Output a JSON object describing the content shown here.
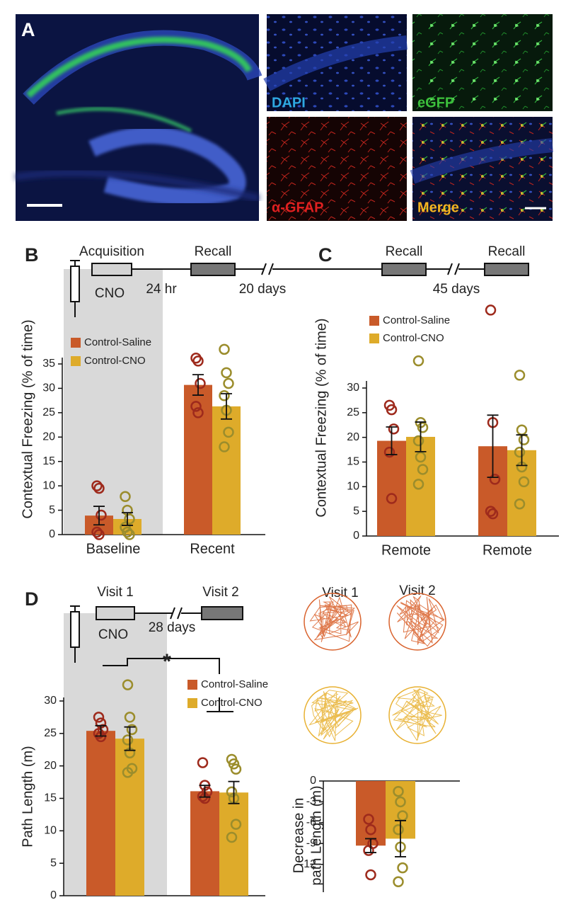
{
  "panel_a": {
    "label": "A",
    "images": [
      "DAPI",
      "eGFP",
      "α-GFAP",
      "Merge"
    ]
  },
  "chart_data": [
    {
      "type": "bar",
      "panel": "B",
      "annotations": [
        "Acquisition",
        "Recall",
        "CNO",
        "24 hr",
        "20 days"
      ],
      "ylabel": "Contextual Freezing (% of time)",
      "categories": [
        "Baseline",
        "Recent"
      ],
      "ylim": [
        0,
        35
      ],
      "yticks": [
        0,
        5,
        10,
        15,
        20,
        25,
        30,
        35
      ],
      "series": [
        {
          "name": "Control-Saline",
          "color": "#c95a29",
          "point_color": "#9e2a1c",
          "values": [
            3.9,
            30.7
          ],
          "errors": [
            1.9,
            2.1
          ],
          "points": [
            [
              10,
              9.5,
              4,
              0.5,
              0
            ],
            [
              36.2,
              35.6,
              31,
              26.3,
              25
            ]
          ]
        },
        {
          "name": "Control-CNO",
          "color": "#deab2a",
          "point_color": "#9b8d2c",
          "values": [
            3.2,
            26.3
          ],
          "errors": [
            1.3,
            2.6
          ],
          "points": [
            [
              7.8,
              5,
              3.2,
              1.5,
              0.5,
              0
            ],
            [
              38,
              33.2,
              31,
              28.5,
              25.5,
              21,
              18
            ]
          ]
        }
      ]
    },
    {
      "type": "bar",
      "panel": "C",
      "annotations": [
        "Recall",
        "Recall",
        "45 days"
      ],
      "ylabel": "Contextual Freezing (% of time)",
      "categories": [
        "Remote",
        "Remote"
      ],
      "ylim": [
        0,
        30
      ],
      "yticks": [
        0,
        5,
        10,
        15,
        20,
        25,
        30
      ],
      "series": [
        {
          "name": "Control-Saline",
          "color": "#c95a29",
          "point_color": "#9e2a1c",
          "values": [
            19.3,
            18.2
          ],
          "errors": [
            2.8,
            6.3
          ],
          "points": [
            [
              26.5,
              25.6,
              21.7,
              17,
              7.6
            ],
            [
              45.8,
              23,
              11.5,
              5,
              4.5
            ]
          ]
        },
        {
          "name": "Control-CNO",
          "color": "#deab2a",
          "point_color": "#9b8d2c",
          "values": [
            20.1,
            17.4
          ],
          "errors": [
            3.0,
            3.1
          ],
          "points": [
            [
              35.5,
              23,
              22,
              19.3,
              16,
              13.5,
              10.5
            ],
            [
              32.6,
              21.5,
              19.5,
              17,
              14,
              11,
              6.5
            ]
          ]
        }
      ]
    },
    {
      "type": "bar",
      "panel": "D",
      "annotations": [
        "Visit 1",
        "Visit 2",
        "CNO",
        "28 days",
        "*"
      ],
      "ylabel": "Path Length (m)",
      "categories": [
        null,
        null
      ],
      "ylim": [
        0,
        30
      ],
      "yticks": [
        0,
        5,
        10,
        15,
        20,
        25,
        30
      ],
      "series": [
        {
          "name": "Control-Saline",
          "color": "#c95a29",
          "point_color": "#9e2a1c",
          "values": [
            25.4,
            16.1
          ],
          "errors": [
            0.8,
            0.9
          ],
          "points": [
            [
              27.5,
              26.6,
              25.6,
              25,
              24.5
            ],
            [
              20.5,
              17,
              16,
              15.3,
              15
            ]
          ]
        },
        {
          "name": "Control-CNO",
          "color": "#deab2a",
          "point_color": "#9b8d2c",
          "values": [
            24.2,
            15.9
          ],
          "errors": [
            1.8,
            1.7
          ],
          "points": [
            [
              32.5,
              27.5,
              25.6,
              24,
              22,
              19.6,
              19
            ],
            [
              21,
              20.3,
              19.5,
              16,
              15,
              11,
              9
            ]
          ]
        }
      ]
    },
    {
      "type": "bar",
      "annotations": [
        "Visit 1",
        "Visit 2"
      ],
      "ylabel": [
        "Decrease in",
        "path Length (m)"
      ],
      "categories": [
        null
      ],
      "ylim": [
        -16,
        0
      ],
      "yticks": [
        0,
        -3,
        -6,
        -9,
        -12
      ],
      "series": [
        {
          "color": "#c95a29",
          "point_color": "#9e2a1c",
          "values": [
            -9.3
          ],
          "errors": [
            1.0
          ],
          "points": [
            [
              -5.5,
              -7,
              -9,
              -10,
              -13.5
            ]
          ]
        },
        {
          "color": "#deab2a",
          "point_color": "#9b8d2c",
          "values": [
            -8.3
          ],
          "errors": [
            2.6
          ],
          "points": [
            [
              -1.5,
              -3,
              -5,
              -7,
              -9.5,
              -12.5,
              -14.5
            ]
          ]
        }
      ]
    }
  ]
}
